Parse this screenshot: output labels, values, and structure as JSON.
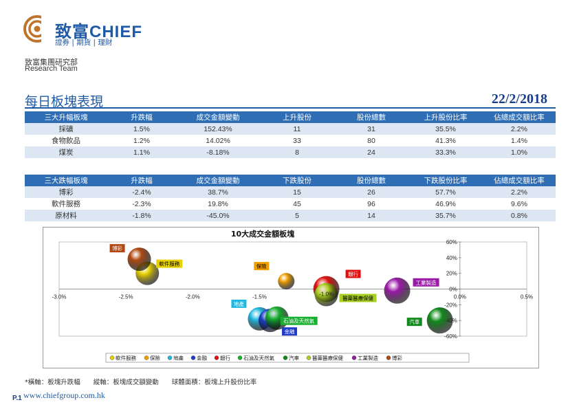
{
  "header": {
    "brand": "致富CHIEF",
    "brand_sub": "證券 | 期貨 | 理財",
    "dept": "致富集團研究部",
    "team": "Research Team",
    "title": "每日板塊表現",
    "date": "22/2/2018"
  },
  "colors": {
    "accent": "#1f5aa6",
    "table_header": "#2f6eb5",
    "row_alt": "#dde7f3",
    "logo": "#c0732a"
  },
  "top_table": {
    "headers": [
      "三大升幅板塊",
      "升跌幅",
      "成交金額變動",
      "上升股份",
      "股份總數",
      "上升股份比率",
      "佔總成交額比率"
    ],
    "rows": [
      [
        "採礦",
        "1.5%",
        "152.43%",
        "11",
        "31",
        "35.5%",
        "2.2%"
      ],
      [
        "食物飲品",
        "1.2%",
        "14.02%",
        "33",
        "80",
        "41.3%",
        "1.4%"
      ],
      [
        "煤炭",
        "1.1%",
        "-8.18%",
        "8",
        "24",
        "33.3%",
        "1.0%"
      ]
    ]
  },
  "bottom_table": {
    "headers": [
      "三大跌幅板塊",
      "升跌幅",
      "成交金額變動",
      "下跌股份",
      "股份總數",
      "下跌股份比率",
      "佔總成交額比率"
    ],
    "rows": [
      [
        "博彩",
        "-2.4%",
        "38.7%",
        "15",
        "26",
        "57.7%",
        "2.2%"
      ],
      [
        "軟件服務",
        "-2.3%",
        "19.8%",
        "45",
        "96",
        "46.9%",
        "9.6%"
      ],
      [
        "原材料",
        "-1.8%",
        "-45.0%",
        "5",
        "14",
        "35.7%",
        "0.8%"
      ]
    ]
  },
  "chart_data": {
    "type": "scatter",
    "title": "10大成交金額板塊",
    "x_ticks": [
      "-3.0%",
      "-2.5%",
      "-2.0%",
      "-1.5%",
      "-1.0%",
      "-0.5%",
      "0.0%",
      "0.5%"
    ],
    "y_ticks": [
      "60%",
      "40%",
      "20%",
      "0%",
      "-20%",
      "-40%",
      "-60%"
    ],
    "xlim": [
      -3.0,
      0.5
    ],
    "ylim": [
      -60,
      60
    ],
    "center_label": "-1.0%",
    "series": [
      {
        "name": "軟件服務",
        "x": -2.34,
        "y": 20,
        "color": "#e8d000"
      },
      {
        "name": "保險",
        "x": -1.3,
        "y": 10,
        "color": "#f0a000"
      },
      {
        "name": "地產",
        "x": -1.5,
        "y": -38,
        "color": "#20b8e0"
      },
      {
        "name": "金融",
        "x": -1.42,
        "y": -40,
        "color": "#1e3cc8"
      },
      {
        "name": "銀行",
        "x": -1.0,
        "y": 0,
        "color": "#e01010"
      },
      {
        "name": "石油及天然氣",
        "x": -1.37,
        "y": -37,
        "color": "#18b030"
      },
      {
        "name": "汽車",
        "x": -0.15,
        "y": -40,
        "color": "#0f8a1a"
      },
      {
        "name": "醫藥醫療保健",
        "x": -1.0,
        "y": -7,
        "color": "#a8d020"
      },
      {
        "name": "工業製造",
        "x": -0.47,
        "y": -2,
        "color": "#9a1aa8"
      },
      {
        "name": "博彩",
        "x": -2.4,
        "y": 38,
        "color": "#b04810"
      }
    ]
  },
  "footer": {
    "footnote": "*橫軸：板塊升跌幅　　縱軸：板塊成交額變動　　球體面積：板塊上升股份比率",
    "page": "P.1",
    "url": "www.chiefgroup.com.hk"
  }
}
